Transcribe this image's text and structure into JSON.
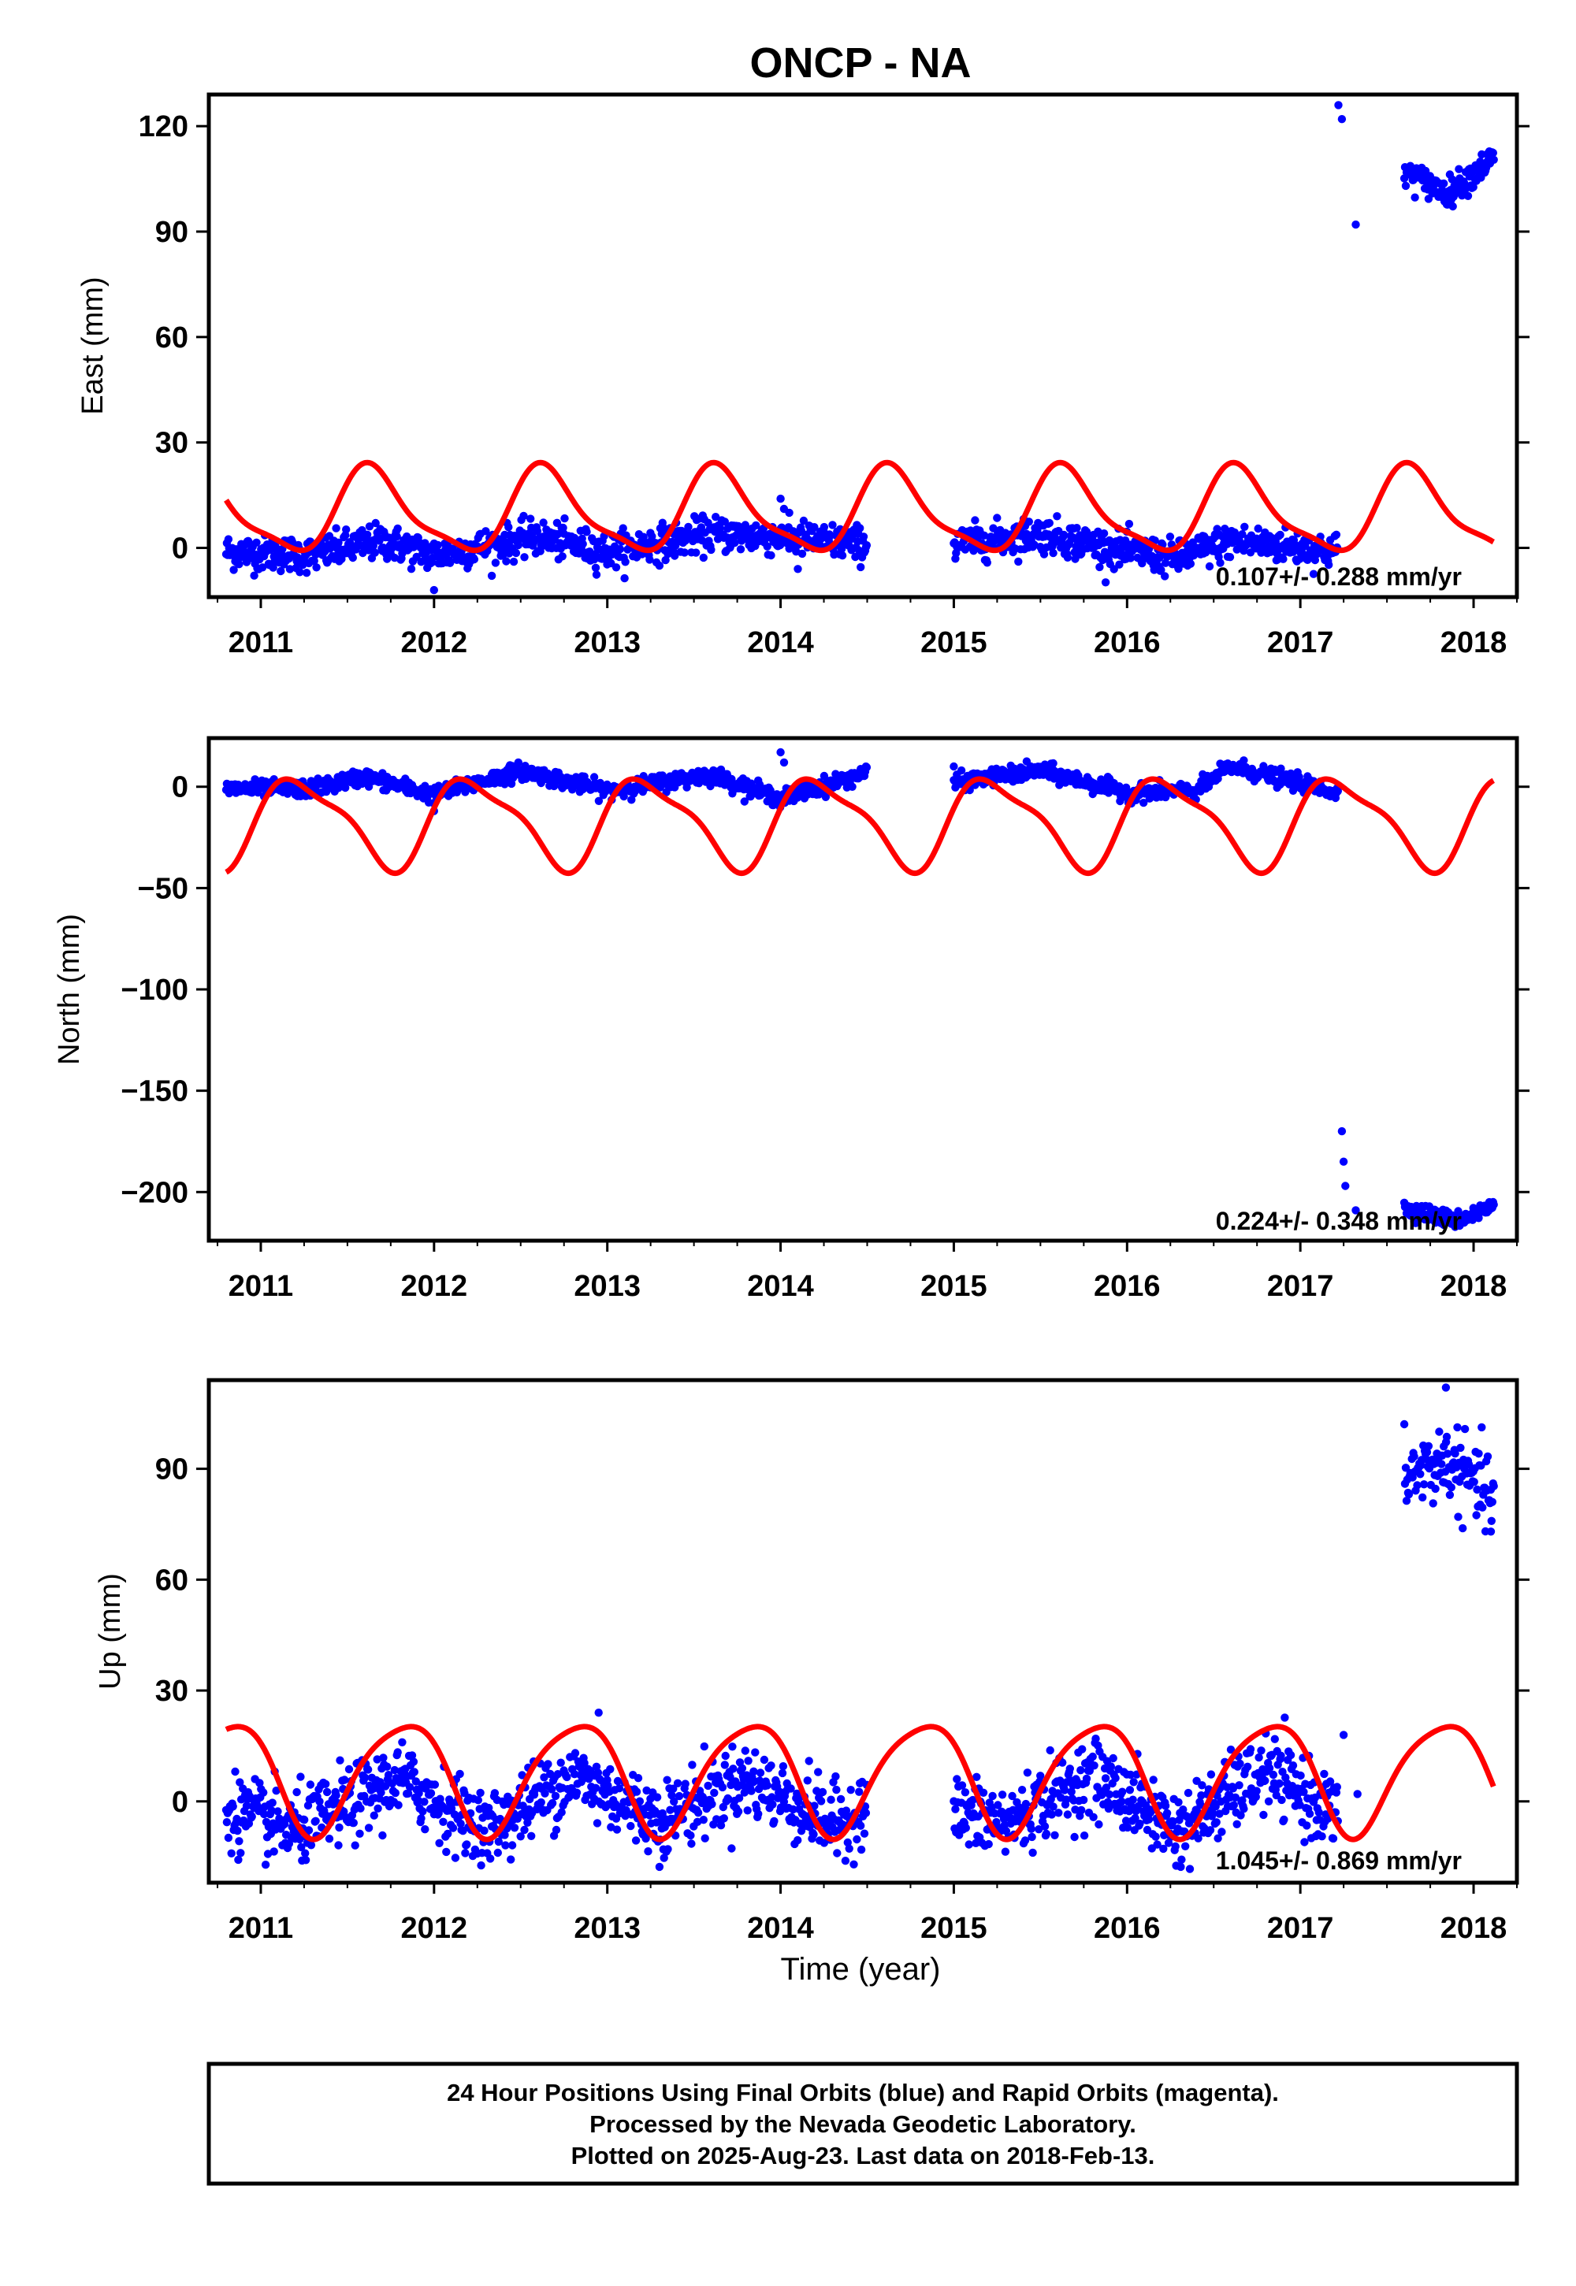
{
  "title": "ONCP - NA",
  "x_axis_label": "Time (year)",
  "x_ticks": [
    "2011",
    "2012",
    "2013",
    "2014",
    "2015",
    "2016",
    "2017",
    "2018"
  ],
  "colors": {
    "final_orbits": "#0000ff",
    "model_curve": "#ff0000",
    "frame": "#000000"
  },
  "footer": {
    "line1": "24 Hour Positions Using Final Orbits (blue) and Rapid Orbits (magenta).",
    "line2": "Processed by the Nevada Geodetic Laboratory.",
    "line3": "Plotted on 2025-Aug-23. Last data on 2018-Feb-13."
  },
  "chart_data": [
    {
      "type": "scatter",
      "ylabel": "East (mm)",
      "xlim": [
        2010.7,
        2018.25
      ],
      "ylim": [
        -14,
        129
      ],
      "yticks": [
        0,
        30,
        60,
        90,
        120
      ],
      "rate_text": "0.107+/- 0.288 mm/yr",
      "data_segments": [
        {
          "x_range": [
            2010.8,
            2014.5
          ],
          "trend": [
            [
              2010.8,
              -1
            ],
            [
              2011.3,
              -2
            ],
            [
              2011.7,
              2
            ],
            [
              2012.0,
              -2
            ],
            [
              2012.6,
              3
            ],
            [
              2013.0,
              -1
            ],
            [
              2013.6,
              4
            ],
            [
              2014.0,
              3
            ],
            [
              2014.5,
              1
            ]
          ],
          "scatter": 2.5
        },
        {
          "x_range": [
            2015.0,
            2017.22
          ],
          "trend": [
            [
              2015.0,
              1
            ],
            [
              2015.5,
              4
            ],
            [
              2016.0,
              -1
            ],
            [
              2016.3,
              -3
            ],
            [
              2016.6,
              2
            ],
            [
              2017.22,
              -1
            ]
          ],
          "scatter": 2.5
        },
        {
          "x_range": [
            2017.6,
            2018.12
          ],
          "trend": [
            [
              2017.6,
              107
            ],
            [
              2017.85,
              101
            ],
            [
              2018.12,
              111
            ]
          ],
          "scatter": 2
        }
      ],
      "outliers": [
        [
          2012.0,
          -12
        ],
        [
          2014.0,
          14
        ],
        [
          2014.05,
          10
        ],
        [
          2014.1,
          -6
        ],
        [
          2017.22,
          126
        ],
        [
          2017.24,
          122
        ],
        [
          2017.32,
          92
        ]
      ],
      "model_curve": {
        "offset": 10,
        "trend_per_year": 0,
        "annual_amp": 11.5,
        "annual_phase": 3.8,
        "semiannual_amp": 3.2,
        "semiannual_phase": 0.5
      }
    },
    {
      "type": "scatter",
      "ylabel": "North (mm)",
      "xlim": [
        2010.7,
        2018.25
      ],
      "ylim": [
        -224,
        24
      ],
      "yticks": [
        0,
        -50,
        -100,
        -150,
        -200
      ],
      "rate_text": "0.224+/- 0.348 mm/yr",
      "data_segments": [
        {
          "x_range": [
            2010.8,
            2014.5
          ],
          "trend": [
            [
              2010.8,
              -1
            ],
            [
              2011.3,
              -1
            ],
            [
              2011.6,
              5
            ],
            [
              2012.0,
              -4
            ],
            [
              2012.5,
              8
            ],
            [
              2013.0,
              -2
            ],
            [
              2013.6,
              6
            ],
            [
              2014.0,
              -6
            ],
            [
              2014.5,
              7
            ]
          ],
          "scatter": 2
        },
        {
          "x_range": [
            2015.0,
            2017.22
          ],
          "trend": [
            [
              2015.0,
              2
            ],
            [
              2015.5,
              8
            ],
            [
              2016.0,
              -3
            ],
            [
              2016.4,
              -2
            ],
            [
              2016.6,
              10
            ],
            [
              2017.22,
              -3
            ]
          ],
          "scatter": 2
        },
        {
          "x_range": [
            2017.6,
            2018.12
          ],
          "trend": [
            [
              2017.6,
              -208
            ],
            [
              2017.9,
              -214
            ],
            [
              2018.12,
              -207
            ]
          ],
          "scatter": 2
        }
      ],
      "outliers": [
        [
          2011.2,
          -4
        ],
        [
          2012.0,
          -12
        ],
        [
          2014.0,
          17
        ],
        [
          2014.02,
          12
        ],
        [
          2015.0,
          10
        ],
        [
          2017.24,
          -170
        ],
        [
          2017.25,
          -185
        ],
        [
          2017.26,
          -197
        ],
        [
          2017.32,
          -209
        ]
      ],
      "model_curve": {
        "offset": -17,
        "trend_per_year": 0,
        "annual_amp": 21,
        "annual_phase": 0.1,
        "semiannual_amp": 6,
        "semiannual_phase": 0.8
      }
    },
    {
      "type": "scatter",
      "ylabel": "Up (mm)",
      "xlim": [
        2010.7,
        2018.25
      ],
      "ylim": [
        -22,
        114
      ],
      "yticks": [
        0,
        30,
        60,
        90
      ],
      "rate_text": "1.045+/- 0.869 mm/yr",
      "data_segments": [
        {
          "x_range": [
            2010.8,
            2014.5
          ],
          "trend": [
            [
              2010.8,
              -2
            ],
            [
              2011.2,
              -8
            ],
            [
              2011.8,
              6
            ],
            [
              2012.3,
              -8
            ],
            [
              2012.8,
              7
            ],
            [
              2013.3,
              -5
            ],
            [
              2013.8,
              6
            ],
            [
              2014.3,
              -6
            ],
            [
              2014.5,
              -2
            ]
          ],
          "scatter": 5
        },
        {
          "x_range": [
            2015.0,
            2017.22
          ],
          "trend": [
            [
              2015.0,
              -3
            ],
            [
              2015.3,
              -6
            ],
            [
              2015.8,
              7
            ],
            [
              2016.3,
              -8
            ],
            [
              2016.8,
              8
            ],
            [
              2017.22,
              -4
            ]
          ],
          "scatter": 5
        },
        {
          "x_range": [
            2017.6,
            2018.12
          ],
          "trend": [
            [
              2017.6,
              88
            ],
            [
              2017.85,
              92
            ],
            [
              2018.12,
              82
            ]
          ],
          "scatter": 5
        }
      ],
      "outliers": [
        [
          2012.95,
          24
        ],
        [
          2017.25,
          18
        ],
        [
          2017.33,
          2
        ],
        [
          2017.84,
          112
        ],
        [
          2018.1,
          73
        ]
      ],
      "model_curve": {
        "offset": 7,
        "trend_per_year": 0,
        "annual_amp": 15,
        "annual_phase": 2.7,
        "semiannual_amp": 2.5,
        "semiannual_phase": 1.2
      }
    }
  ]
}
